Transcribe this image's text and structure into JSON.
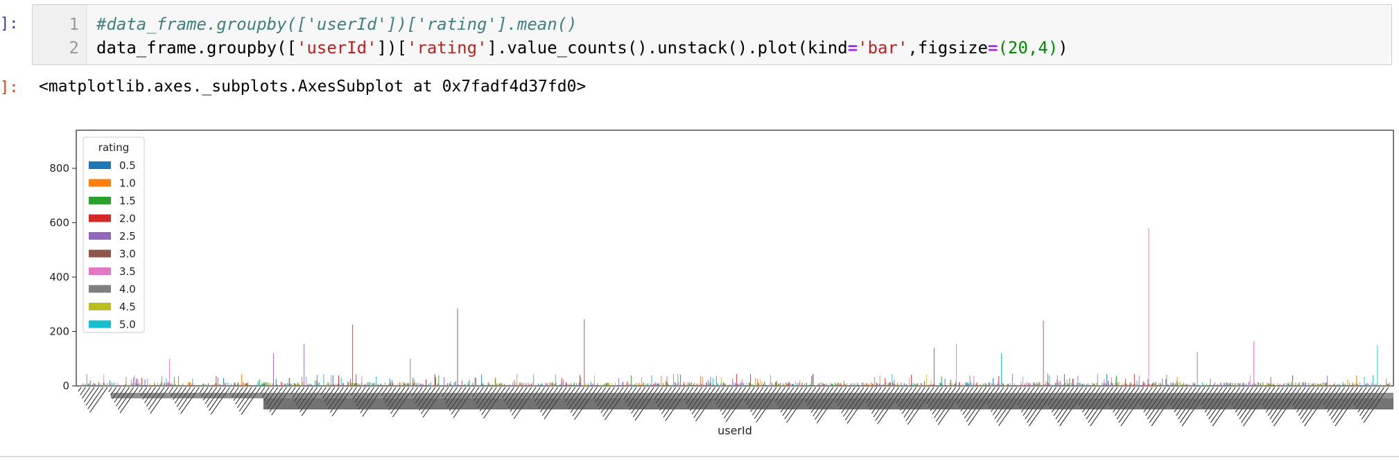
{
  "input_cell": {
    "prompt": "]:",
    "lines": [
      {
        "number": "1"
      },
      {
        "number": "2"
      }
    ],
    "line1_comment": "#data_frame.groupby(['userId'])['rating'].mean()",
    "line2": {
      "p1": "data_frame.groupby([",
      "s1": "'userId'",
      "p2": "])[",
      "s2": "'rating'",
      "p3": "].value_counts().unstack().plot(kind",
      "eq1": "=",
      "s3": "'bar'",
      "p4": ",figsize",
      "eq2": "=",
      "paren_open": "(",
      "n1": "20",
      "comma": ",",
      "n2": "4",
      "paren_close": ")",
      "end": ")"
    }
  },
  "output_cell": {
    "prompt": "]:",
    "text": "<matplotlib.axes._subplots.AxesSubplot at 0x7fadf4d37fd0>"
  },
  "chart_data": {
    "type": "bar",
    "xlabel": "userId",
    "ylabel": "",
    "ylim": [
      0,
      940
    ],
    "yticks": [
      0,
      200,
      400,
      600,
      800
    ],
    "legend": {
      "title": "rating",
      "placement": "top-left",
      "entries": [
        {
          "label": "0.5",
          "color": "#1f77b4"
        },
        {
          "label": "1.0",
          "color": "#ff7f0e"
        },
        {
          "label": "1.5",
          "color": "#2ca02c"
        },
        {
          "label": "2.0",
          "color": "#d62728"
        },
        {
          "label": "2.5",
          "color": "#9467bd"
        },
        {
          "label": "3.0",
          "color": "#8c564b"
        },
        {
          "label": "3.5",
          "color": "#e377c2"
        },
        {
          "label": "4.0",
          "color": "#7f7f7f"
        },
        {
          "label": "4.5",
          "color": "#bcbd22"
        },
        {
          "label": "5.0",
          "color": "#17becf"
        }
      ]
    },
    "notable_values": [
      {
        "rating": "3.0",
        "value": 285
      },
      {
        "rating": "3.0",
        "value": 225
      },
      {
        "rating": "3.0",
        "value": 245
      },
      {
        "rating": "3.0",
        "value": 240
      },
      {
        "rating": "3.5",
        "value": 580
      },
      {
        "rating": "3.5",
        "value": 155
      },
      {
        "rating": "3.5",
        "value": 165
      },
      {
        "rating": "2.5",
        "value": 155
      },
      {
        "rating": "2.5",
        "value": 120
      },
      {
        "rating": "3.0",
        "value": 140
      },
      {
        "rating": "3.5",
        "value": 100
      },
      {
        "rating": "4.0",
        "value": 100
      },
      {
        "rating": "5.0",
        "value": 120
      },
      {
        "rating": "4.0",
        "value": 125
      },
      {
        "rating": "5.0",
        "value": 150
      }
    ]
  }
}
